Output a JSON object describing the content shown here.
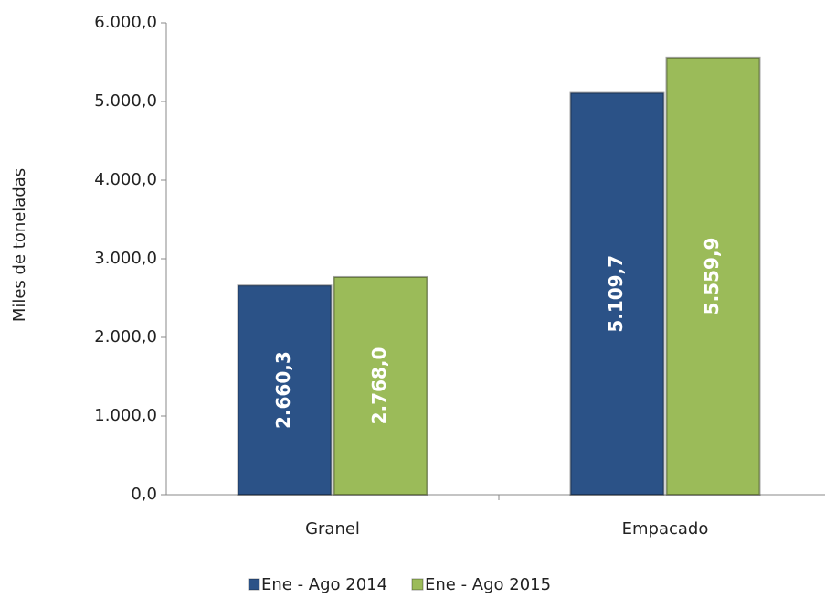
{
  "chart_data": {
    "type": "bar",
    "y_label": "Miles de toneladas",
    "categories": [
      "Granel",
      "Empacado"
    ],
    "series": [
      {
        "name": "Ene - Ago 2014",
        "color": "#2b5287",
        "values": [
          2660.3,
          5109.7
        ],
        "value_labels": [
          "2.660,3",
          "5.109,7"
        ]
      },
      {
        "name": "Ene - Ago 2015",
        "color": "#9bbb59",
        "values": [
          2768.0,
          5559.9
        ],
        "value_labels": [
          "2.768,0",
          "5.559,9"
        ]
      }
    ],
    "ylim": [
      0,
      6000
    ],
    "yticks": [
      {
        "value": 0,
        "label": "0,0"
      },
      {
        "value": 1000,
        "label": "1.000,0"
      },
      {
        "value": 2000,
        "label": "2.000,0"
      },
      {
        "value": 3000,
        "label": "3.000,0"
      },
      {
        "value": 4000,
        "label": "4.000,0"
      },
      {
        "value": 5000,
        "label": "5.000,0"
      },
      {
        "value": 6000,
        "label": "6.000,0"
      }
    ],
    "grid": false,
    "legend": "bottom"
  }
}
